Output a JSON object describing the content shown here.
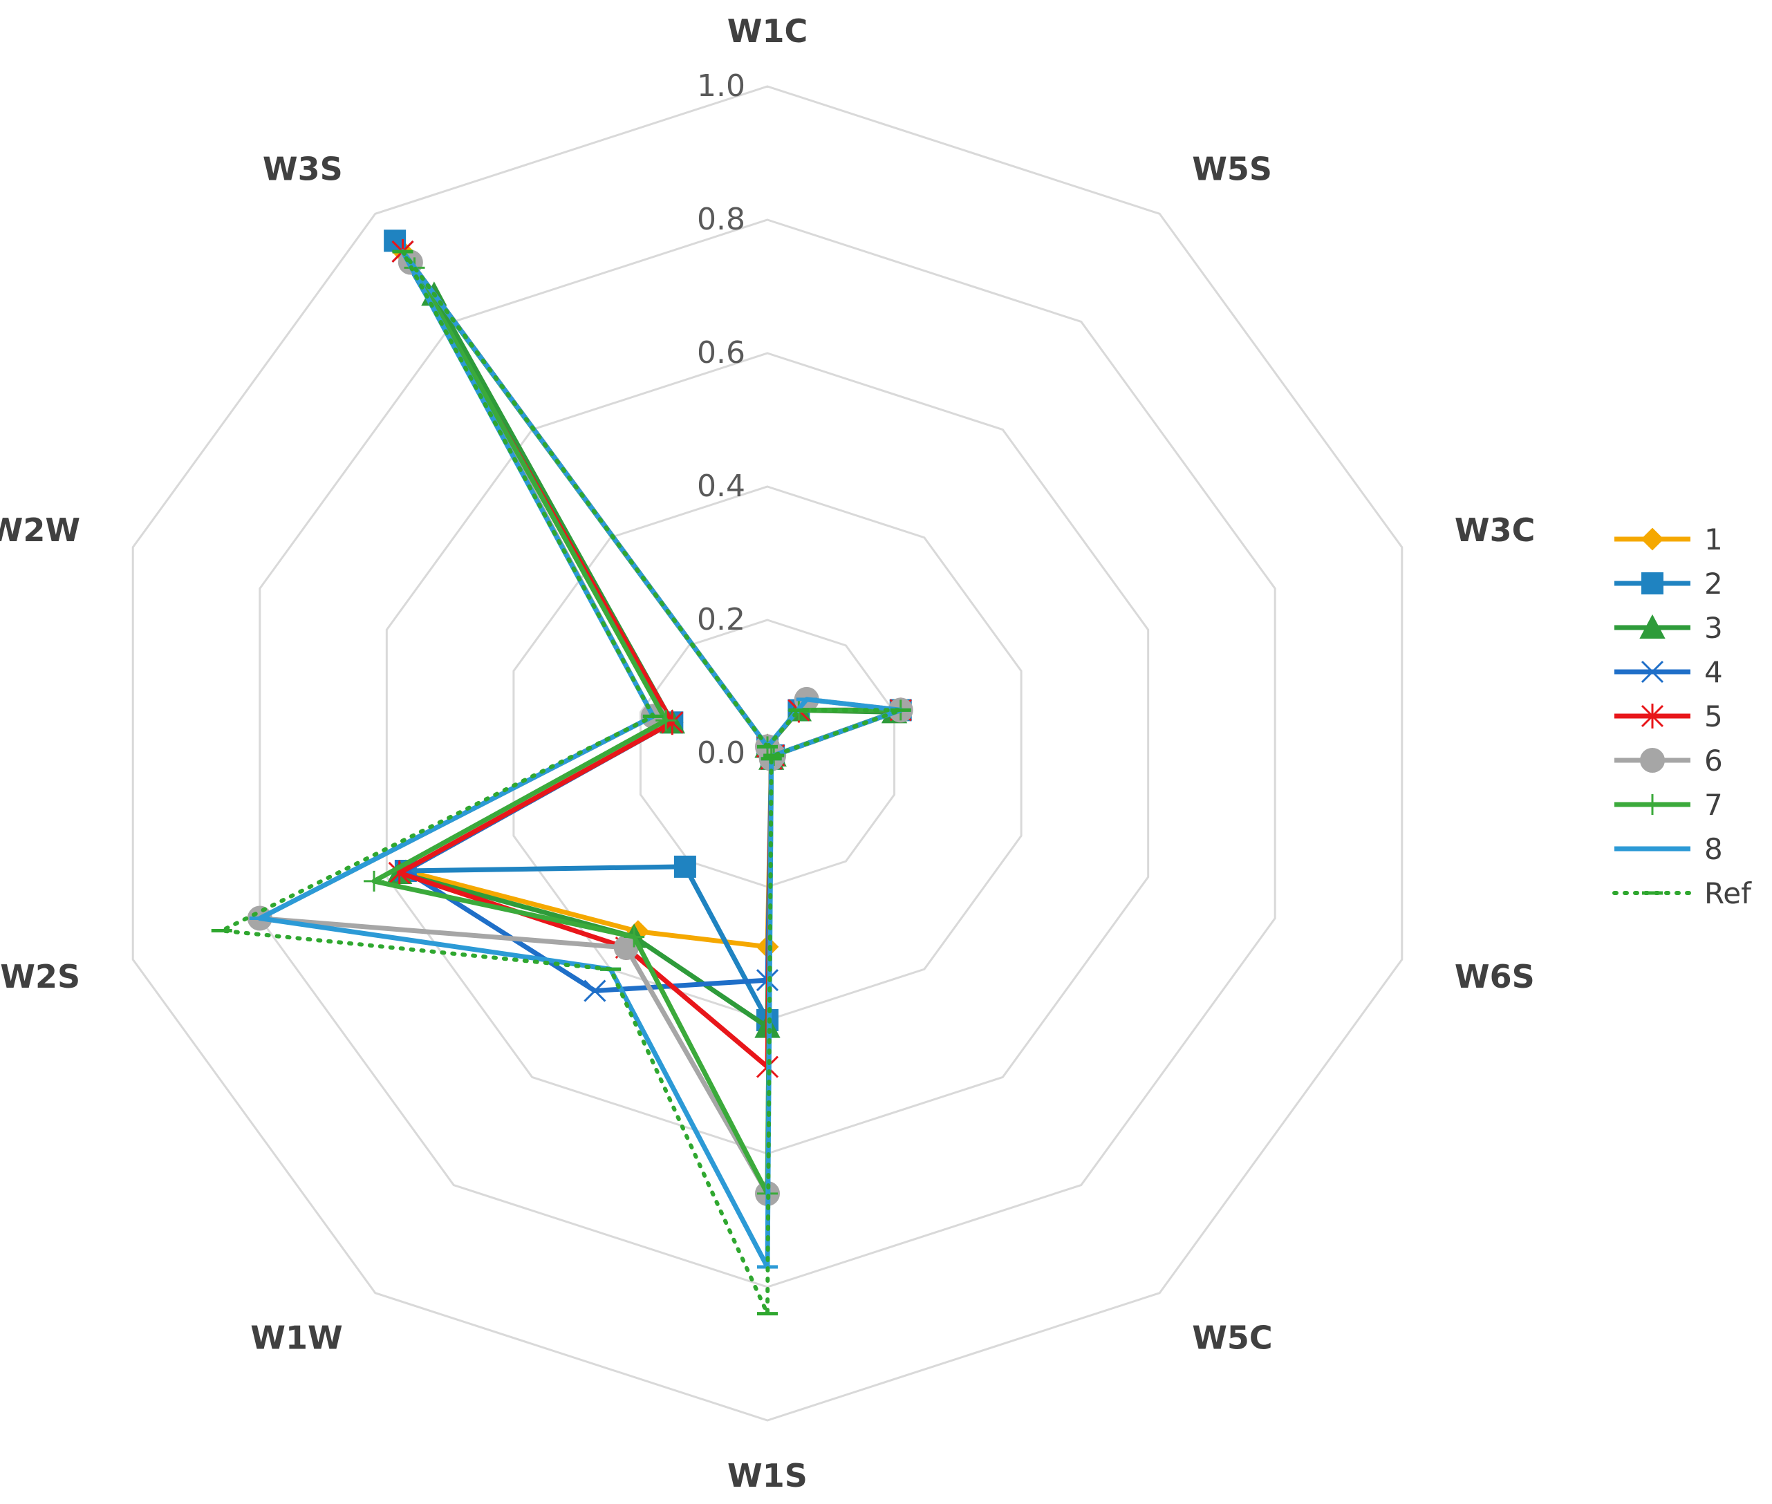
{
  "chart_data": {
    "type": "radar",
    "title": "",
    "axes": [
      "W1C",
      "W5S",
      "W3C",
      "W6S",
      "W5C",
      "W1S",
      "W1W",
      "W2S",
      "W2W",
      "W3S"
    ],
    "rlim": [
      0,
      1.0
    ],
    "ticks": [
      "0.0",
      "0.2",
      "0.4",
      "0.6",
      "0.8",
      "1.0"
    ],
    "tick_values": [
      0,
      0.2,
      0.4,
      0.6,
      0.8,
      1.0
    ],
    "legend_position": "right",
    "series": [
      {
        "name": "1",
        "color": "#F5A800",
        "marker": "diamond",
        "dash": "solid",
        "values": [
          0.01,
          0.08,
          0.21,
          0.01,
          0.01,
          0.29,
          0.33,
          0.57,
          0.15,
          0.93
        ]
      },
      {
        "name": "2",
        "color": "#1F83C1",
        "marker": "square",
        "dash": "solid",
        "values": [
          0.01,
          0.08,
          0.21,
          0.01,
          0.01,
          0.4,
          0.21,
          0.57,
          0.15,
          0.95
        ]
      },
      {
        "name": "3",
        "color": "#2E9B3A",
        "marker": "triangle",
        "dash": "solid",
        "values": [
          0.01,
          0.08,
          0.2,
          0.01,
          0.01,
          0.41,
          0.34,
          0.58,
          0.15,
          0.85
        ]
      },
      {
        "name": "4",
        "color": "#1F6FC8",
        "marker": "x",
        "dash": "solid",
        "values": [
          0.01,
          0.08,
          0.21,
          0.01,
          0.01,
          0.34,
          0.44,
          0.57,
          0.15,
          0.93
        ]
      },
      {
        "name": "5",
        "color": "#E8161A",
        "marker": "star",
        "dash": "solid",
        "values": [
          0.01,
          0.08,
          0.21,
          0.01,
          0.01,
          0.47,
          0.36,
          0.58,
          0.15,
          0.93
        ]
      },
      {
        "name": "6",
        "color": "#A6A6A6",
        "marker": "circle",
        "dash": "solid",
        "values": [
          0.01,
          0.1,
          0.21,
          0.01,
          0.01,
          0.66,
          0.36,
          0.8,
          0.18,
          0.91
        ]
      },
      {
        "name": "7",
        "color": "#3BAA3B",
        "marker": "plus",
        "dash": "solid",
        "values": [
          0.01,
          0.08,
          0.21,
          0.01,
          0.01,
          0.66,
          0.34,
          0.62,
          0.16,
          0.9
        ]
      },
      {
        "name": "8",
        "color": "#2C9AD6",
        "marker": "dash",
        "dash": "solid",
        "values": [
          0.01,
          0.1,
          0.21,
          0.01,
          0.01,
          0.77,
          0.4,
          0.8,
          0.18,
          0.93
        ]
      },
      {
        "name": "Ref",
        "color": "#2FA72F",
        "marker": "dash",
        "dash": "dotted",
        "values": [
          0.01,
          0.08,
          0.21,
          0.01,
          0.01,
          0.84,
          0.4,
          0.86,
          0.18,
          0.93
        ]
      }
    ]
  }
}
